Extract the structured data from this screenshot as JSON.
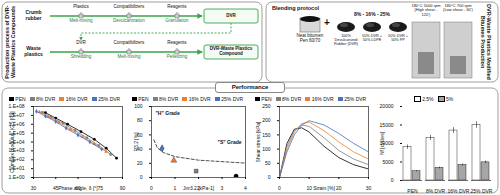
{
  "production": {
    "label": "Production process of DVR-Waste Plastics Compounds",
    "rows": [
      {
        "input": "Crumb rubber",
        "additives": [
          "Plastics",
          "Compatibilizers",
          "Reagents"
        ],
        "steps": [
          "Melt-mixing",
          "Devulcanization",
          "Granulation"
        ],
        "output": "DVR"
      },
      {
        "input": "Waste plastics",
        "additives": [
          "DVR",
          "Compatibilizers",
          "Reagents"
        ],
        "steps": [
          "Shredding",
          "Melt-mixing",
          "Pelletizing"
        ],
        "output": "DVR-Waste Plastics Compound"
      }
    ]
  },
  "blending": {
    "label": "DVR-Waste Plastics Modified Bitumen Production",
    "title": "Blending protocol",
    "bitumen": "Neat bitumen Pen 60/70",
    "plus": "+",
    "dosages": "8% - 16% - 25%",
    "modifiers": [
      "100% Devulcanized Rubber (DVR)",
      "50% DVR + 50% LDPE",
      "50% DVR + 50% PP"
    ],
    "mixing": [
      "180°C 5000 rpm (High shear - 120')",
      "180°C 700 rpm (Low shear - 60')"
    ]
  },
  "performance": {
    "label": "Performance"
  },
  "chart_data": [
    {
      "type": "line",
      "log": "y",
      "x_label": "Phase angle, δ [°]",
      "y_label": "Complex modulus, |G*| [Pa]",
      "xlim": [
        30,
        90
      ],
      "xticks": [
        30,
        45,
        60,
        75,
        90
      ],
      "ylim": [
        1,
        100000000
      ],
      "yticks": [
        {
          "value": 1,
          "label": "1.E+00"
        },
        {
          "value": 10,
          "label": "1.E+01"
        },
        {
          "value": 100,
          "label": "1.E+02"
        },
        {
          "value": 1000,
          "label": "1.E+03"
        },
        {
          "value": 10000,
          "label": "1.E+04"
        },
        {
          "value": 100000,
          "label": "1.E+05"
        },
        {
          "value": 1000000,
          "label": "1.E+06"
        },
        {
          "value": 10000000,
          "label": "1.E+07"
        },
        {
          "value": 100000000,
          "label": "1.E+08"
        }
      ],
      "series": [
        {
          "name": "PEN",
          "color": "#000000",
          "marker": "circle",
          "line_style": "solid",
          "x": [
            38,
            45,
            53,
            62,
            71,
            79,
            86
          ],
          "values": [
            20000000,
            5000000,
            1000000,
            150000,
            20000,
            2000,
            150
          ]
        },
        {
          "name": "8% DVR",
          "color": "#7f7f7f",
          "marker": "square",
          "line_style": "solid",
          "x": [
            36,
            42,
            50,
            58,
            66,
            74,
            82
          ],
          "values": [
            22000000,
            6000000,
            1300000,
            200000,
            30000,
            4000,
            400
          ]
        },
        {
          "name": "16% DVR",
          "color": "#ed7d31",
          "marker": "triangle",
          "line_style": "solid",
          "x": [
            34,
            40,
            47,
            55,
            63,
            71,
            79
          ],
          "values": [
            25000000,
            7000000,
            1600000,
            260000,
            40000,
            6000,
            800
          ]
        },
        {
          "name": "25% DVR",
          "color": "#4472c4",
          "marker": "diamond",
          "line_style": "solid",
          "x": [
            32,
            38,
            45,
            52,
            60,
            68,
            76
          ],
          "values": [
            28000000,
            8000000,
            2000000,
            350000,
            60000,
            10000,
            1500
          ]
        }
      ]
    },
    {
      "type": "scatter",
      "x_label": "Jnr3.2 [kPa-1]",
      "y_label": "R3.2 [%]",
      "xlim": [
        0,
        4
      ],
      "xticks": [
        0,
        1,
        2,
        3,
        4
      ],
      "ylim": [
        0,
        100
      ],
      "yticks": [
        0,
        20,
        40,
        60,
        80,
        100
      ],
      "boundary": {
        "x": [
          0.1,
          0.25,
          0.5,
          1,
          2,
          4
        ],
        "values": [
          53,
          41.8,
          35.2,
          29.4,
          24.4,
          20.3
        ],
        "line_style": "dashed",
        "color": "#000000"
      },
      "annotations": [
        "\"H\" Grade",
        "\"S\" Grade"
      ],
      "series": [
        {
          "name": "PEN",
          "color": "#000000",
          "marker": "circle",
          "x": [
            3.6
          ],
          "values": [
            2
          ]
        },
        {
          "name": "8% DVR",
          "color": "#7f7f7f",
          "marker": "square",
          "x": [
            1.9
          ],
          "values": [
            9
          ]
        },
        {
          "name": "16% DVR",
          "color": "#ed7d31",
          "marker": "triangle",
          "x": [
            0.95
          ],
          "values": [
            24
          ]
        },
        {
          "name": "25% DVR",
          "color": "#4472c4",
          "marker": "diamond",
          "x": [
            0.45
          ],
          "values": [
            41
          ]
        }
      ]
    },
    {
      "type": "line",
      "x_label": "Strain [%]",
      "y_label": "Shear stress [kPa]",
      "xlim": [
        0,
        30
      ],
      "xticks": [
        0,
        10,
        20,
        30
      ],
      "ylim": [
        0,
        250
      ],
      "yticks": [
        0,
        50,
        100,
        150,
        200,
        250
      ],
      "x": [
        0,
        2.5,
        5,
        7.5,
        10,
        15,
        20,
        25,
        30
      ],
      "series": [
        {
          "name": "PEN",
          "color": "#000000",
          "line_style": "solid",
          "values": [
            0,
            120,
            170,
            175,
            160,
            110,
            70,
            45,
            30
          ]
        },
        {
          "name": "8% DVR",
          "color": "#7f7f7f",
          "line_style": "solid",
          "values": [
            0,
            110,
            165,
            185,
            180,
            140,
            95,
            65,
            45
          ]
        },
        {
          "name": "16% DVR",
          "color": "#ed7d31",
          "line_style": "solid",
          "values": [
            0,
            100,
            160,
            190,
            195,
            165,
            125,
            90,
            65
          ]
        },
        {
          "name": "25% DVR",
          "color": "#4472c4",
          "line_style": "solid",
          "values": [
            0,
            90,
            150,
            185,
            200,
            185,
            155,
            120,
            90
          ]
        }
      ]
    },
    {
      "type": "bar",
      "y_label": "Nf [cycles]",
      "ylim": [
        0,
        20000
      ],
      "yticks": [
        0,
        5000,
        10000,
        15000,
        20000
      ],
      "categories": [
        "PEN",
        "8% DVR",
        "16% DVR",
        "25% DVR"
      ],
      "series": [
        {
          "name": "2.5%",
          "color": "#ffffff",
          "values": [
            9000,
            11500,
            13500,
            15000
          ],
          "errors": [
            600,
            700,
            800,
            900
          ]
        },
        {
          "name": "5%",
          "color": "#a6a6a6",
          "values": [
            2500,
            3400,
            4200,
            4900
          ],
          "errors": [
            200,
            250,
            300,
            350
          ]
        }
      ]
    }
  ]
}
